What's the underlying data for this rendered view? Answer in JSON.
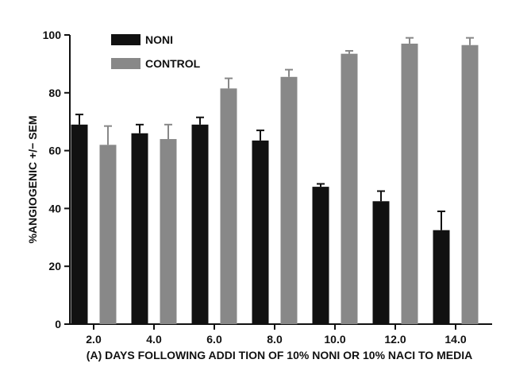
{
  "chart_data": {
    "type": "bar",
    "xlabel": "(A) DAYS FOLLOWING ADDI TION OF 10% NONI OR 10% NACI TO MEDIA",
    "ylabel": "%ANGIOGENIC +/− SEM",
    "ylim": [
      0,
      100
    ],
    "yticks": [
      "0",
      "20",
      "40",
      "60",
      "80",
      "100"
    ],
    "categories": [
      "2.0",
      "4.0",
      "6.0",
      "8.0",
      "10.0",
      "12.0",
      "14.0"
    ],
    "series": [
      {
        "name": "NONI",
        "color": "#111111",
        "values": [
          69,
          66,
          69,
          63.5,
          47.5,
          42.5,
          32.5
        ],
        "errors": [
          3.5,
          3,
          2.5,
          3.5,
          1,
          3.5,
          6.5
        ]
      },
      {
        "name": "CONTROL",
        "color": "#888888",
        "values": [
          62,
          64,
          81.5,
          85.5,
          93.5,
          97,
          96.5
        ],
        "errors": [
          6.5,
          5,
          3.5,
          2.5,
          1,
          2,
          2.5
        ]
      }
    ],
    "legend_position": "top-left",
    "grid": false
  }
}
